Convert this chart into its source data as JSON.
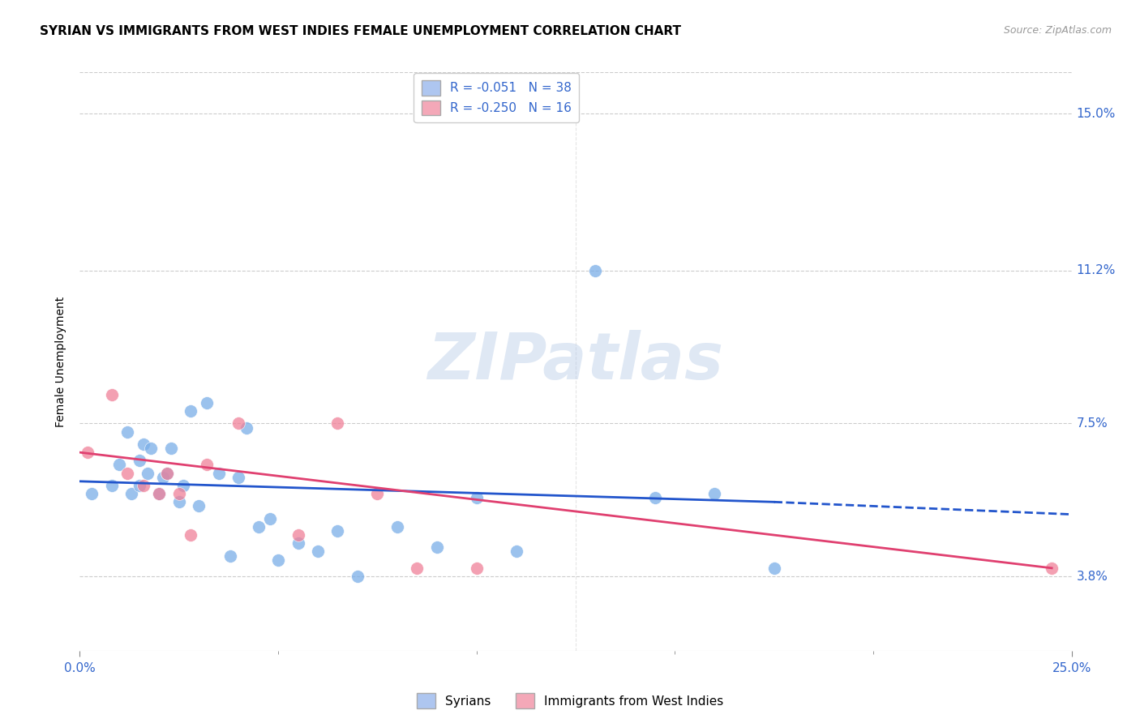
{
  "title": "SYRIAN VS IMMIGRANTS FROM WEST INDIES FEMALE UNEMPLOYMENT CORRELATION CHART",
  "source": "Source: ZipAtlas.com",
  "ylabel": "Female Unemployment",
  "x_min": 0.0,
  "x_max": 0.25,
  "y_min": 0.02,
  "y_max": 0.16,
  "y_ticks": [
    0.038,
    0.075,
    0.112,
    0.15
  ],
  "y_tick_labels": [
    "3.8%",
    "7.5%",
    "11.2%",
    "15.0%"
  ],
  "legend_label1": "R = -0.051   N = 38",
  "legend_label2": "R = -0.250   N = 16",
  "legend_color1": "#aec6f0",
  "legend_color2": "#f4a8b8",
  "scatter_color1": "#7aaee8",
  "scatter_color2": "#f08098",
  "line_color1": "#2255cc",
  "line_color2": "#e04070",
  "watermark": "ZIPatlas",
  "bottom_legend1": "Syrians",
  "bottom_legend2": "Immigrants from West Indies",
  "syrians_x": [
    0.003,
    0.008,
    0.01,
    0.012,
    0.013,
    0.015,
    0.015,
    0.016,
    0.017,
    0.018,
    0.02,
    0.021,
    0.022,
    0.023,
    0.025,
    0.026,
    0.028,
    0.03,
    0.032,
    0.035,
    0.038,
    0.04,
    0.042,
    0.045,
    0.048,
    0.05,
    0.055,
    0.06,
    0.065,
    0.07,
    0.08,
    0.09,
    0.1,
    0.11,
    0.13,
    0.145,
    0.16,
    0.175
  ],
  "syrians_y": [
    0.058,
    0.06,
    0.065,
    0.073,
    0.058,
    0.06,
    0.066,
    0.07,
    0.063,
    0.069,
    0.058,
    0.062,
    0.063,
    0.069,
    0.056,
    0.06,
    0.078,
    0.055,
    0.08,
    0.063,
    0.043,
    0.062,
    0.074,
    0.05,
    0.052,
    0.042,
    0.046,
    0.044,
    0.049,
    0.038,
    0.05,
    0.045,
    0.057,
    0.044,
    0.112,
    0.057,
    0.058,
    0.04
  ],
  "westindies_x": [
    0.002,
    0.008,
    0.012,
    0.016,
    0.02,
    0.022,
    0.025,
    0.028,
    0.032,
    0.04,
    0.055,
    0.065,
    0.075,
    0.085,
    0.1,
    0.245
  ],
  "westindies_y": [
    0.068,
    0.082,
    0.063,
    0.06,
    0.058,
    0.063,
    0.058,
    0.048,
    0.065,
    0.075,
    0.048,
    0.075,
    0.058,
    0.04,
    0.04,
    0.04
  ],
  "background_color": "#ffffff",
  "grid_color": "#cccccc",
  "title_fontsize": 11,
  "axis_label_fontsize": 10,
  "tick_fontsize": 11,
  "tick_color": "#3366cc",
  "source_color": "#999999",
  "source_fontsize": 9,
  "line1_x0": 0.0,
  "line1_y0": 0.061,
  "line1_x1": 0.175,
  "line1_y1": 0.056,
  "line1_xdash_end": 0.25,
  "line1_ydash_end": 0.053,
  "line2_x0": 0.0,
  "line2_y0": 0.068,
  "line2_x1": 0.245,
  "line2_y1": 0.04
}
